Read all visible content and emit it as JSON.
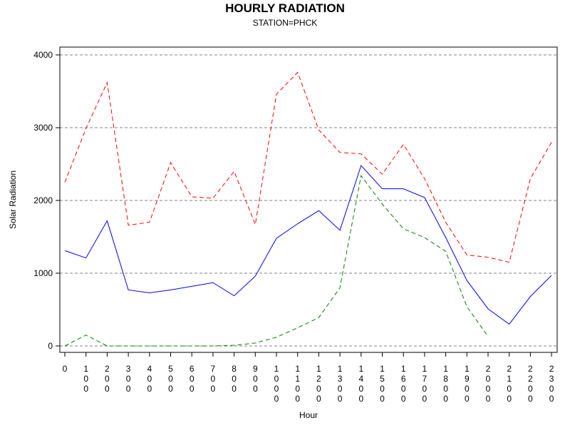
{
  "chart_data": {
    "type": "line",
    "title": "HOURLY RADIATION",
    "subtitle": "STATION=PHCK",
    "xlabel": "Hour",
    "ylabel": "Solar Radiation",
    "ylim": [
      0,
      4000
    ],
    "yticks": [
      0,
      1000,
      2000,
      3000,
      4000
    ],
    "grid": true,
    "x": [
      0,
      100,
      200,
      300,
      400,
      500,
      600,
      700,
      800,
      900,
      1000,
      1100,
      1200,
      1300,
      1400,
      1500,
      1600,
      1700,
      1800,
      1900,
      2000,
      2100,
      2200,
      2300
    ],
    "x_tick_labels": [
      "0",
      "100",
      "200",
      "300",
      "400",
      "500",
      "600",
      "700",
      "800",
      "900",
      "1000",
      "1100",
      "1200",
      "1300",
      "1400",
      "1500",
      "1600",
      "1700",
      "1800",
      "1900",
      "2000",
      "2100",
      "2200",
      "2300"
    ],
    "series": [
      {
        "color": "#0000ff",
        "style": "solid",
        "values": [
          1310,
          1210,
          1720,
          770,
          730,
          770,
          820,
          870,
          690,
          960,
          1480,
          1680,
          1860,
          1590,
          2480,
          2160,
          2160,
          2040,
          1490,
          900,
          510,
          300,
          680,
          970
        ]
      },
      {
        "color": "#ff0000",
        "style": "dashed",
        "values": [
          2250,
          2990,
          3620,
          1660,
          1700,
          2520,
          2050,
          2030,
          2400,
          1670,
          3460,
          3760,
          2970,
          2660,
          2640,
          2360,
          2770,
          2300,
          1700,
          1250,
          1220,
          1150,
          2300,
          2800
        ]
      },
      {
        "color": "#008000",
        "style": "dashed",
        "values": [
          0,
          150,
          0,
          0,
          0,
          0,
          0,
          0,
          10,
          40,
          120,
          250,
          390,
          800,
          2340,
          1950,
          1610,
          1490,
          1300,
          540,
          130,
          null,
          null,
          null
        ]
      }
    ]
  }
}
